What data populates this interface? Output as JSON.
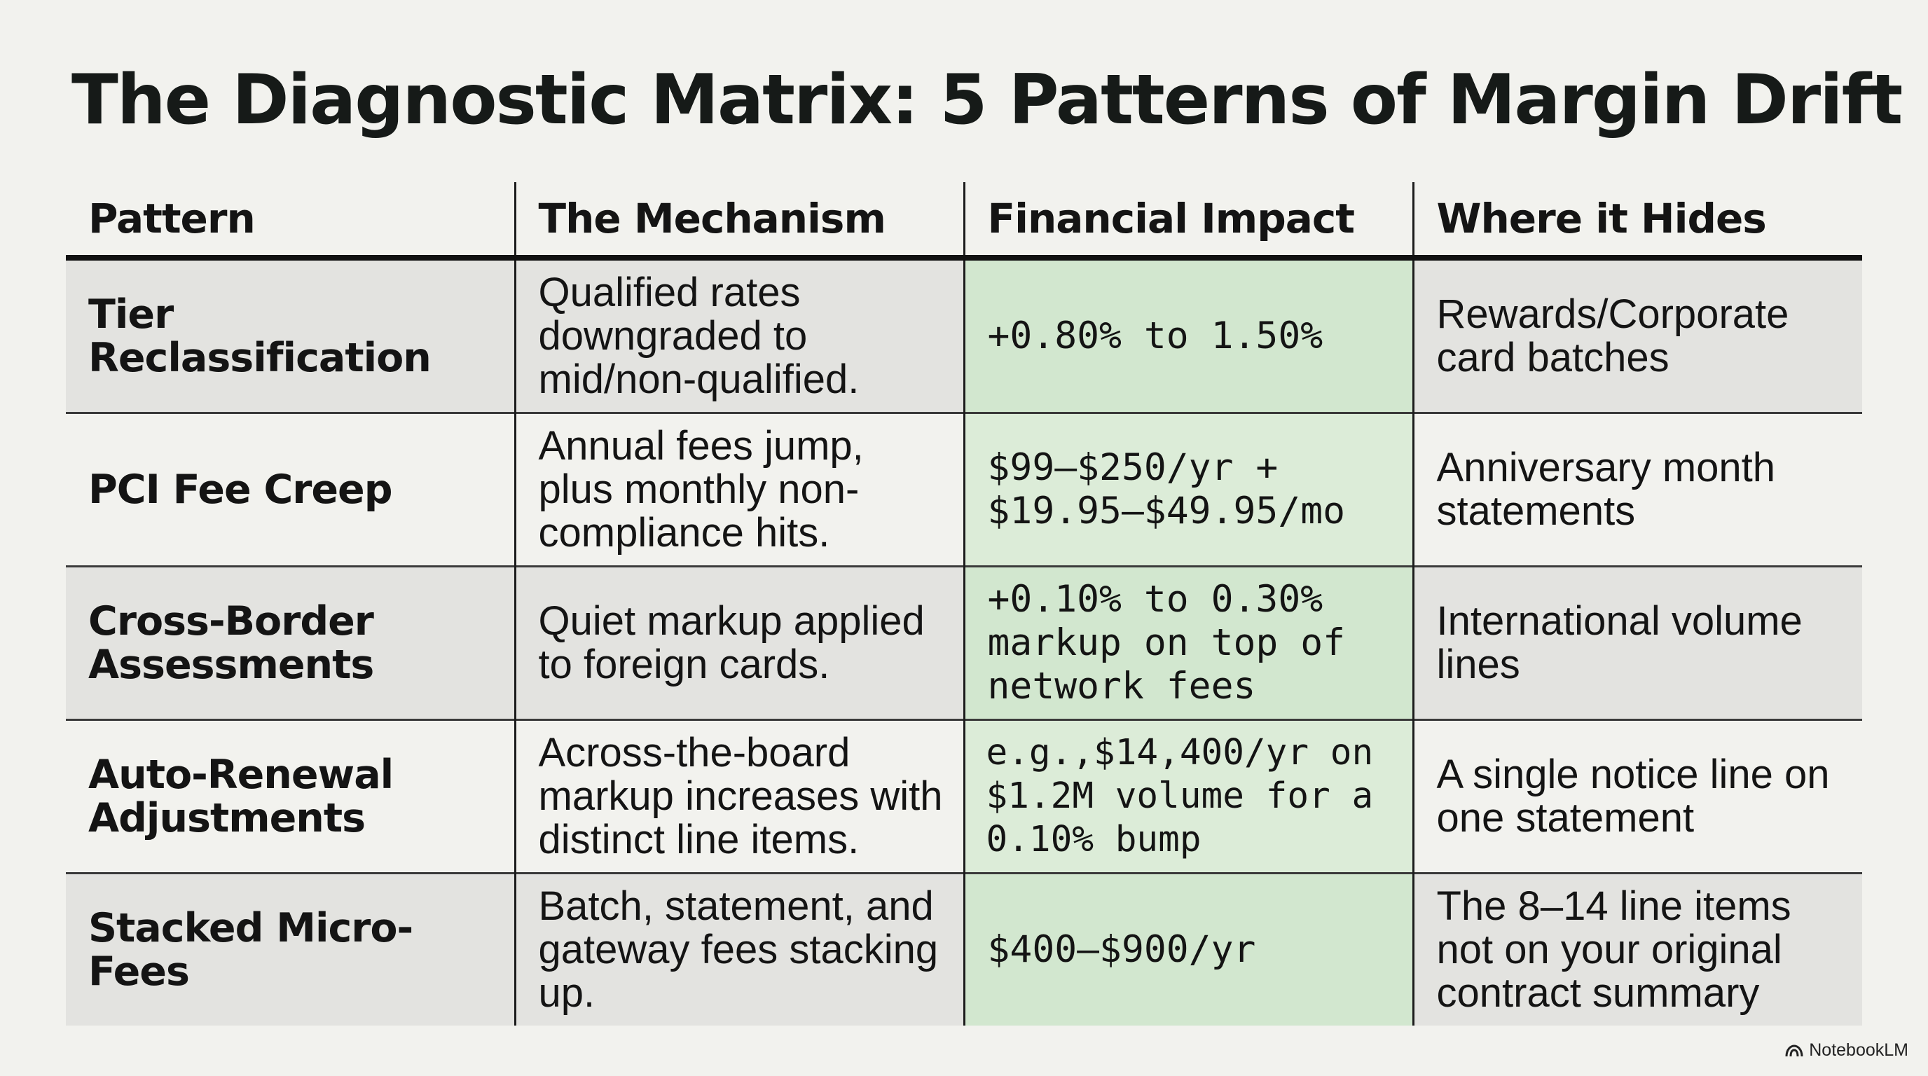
{
  "slide": {
    "title": "The Diagnostic Matrix: 5 Patterns of Margin Drift"
  },
  "table": {
    "headers": [
      "Pattern",
      "The Mechanism",
      "Financial Impact",
      "Where it Hides"
    ],
    "rows": [
      {
        "pattern": "Tier Reclassification",
        "mechanism": "Qualified rates downgraded to mid/non-qualified.",
        "impact": "+0.80% to 1.50%",
        "hides": "Rewards/Corporate card batches"
      },
      {
        "pattern": "PCI Fee Creep",
        "mechanism": "Annual fees jump, plus monthly non-compliance hits.",
        "impact": "$99–$250/yr + $19.95–$49.95/mo",
        "hides": "Anniversary month statements"
      },
      {
        "pattern": "Cross-Border Assessments",
        "mechanism": "Quiet markup applied to foreign cards.",
        "impact": "+0.10% to 0.30% markup on top of network fees",
        "hides": "International volume lines"
      },
      {
        "pattern": "Auto-Renewal Adjustments",
        "mechanism": "Across-the-board markup increases with distinct line items.",
        "impact": "e.g.,$14,400/yr on $1.2M volume for a 0.10% bump",
        "hides": "A single notice line on one statement"
      },
      {
        "pattern": "Stacked Micro-Fees",
        "mechanism": "Batch, statement, and gateway fees stacking up.",
        "impact": "$400–$900/yr",
        "hides": "The 8–14 line items not on your original contract summary"
      }
    ]
  },
  "colors": {
    "impact_highlight": "#d2e7cf",
    "row_shade": "#e3e3e0",
    "background": "#f2f2ee"
  },
  "brand": {
    "label": "NotebookLM",
    "icon": "notebooklm-logo-icon"
  }
}
